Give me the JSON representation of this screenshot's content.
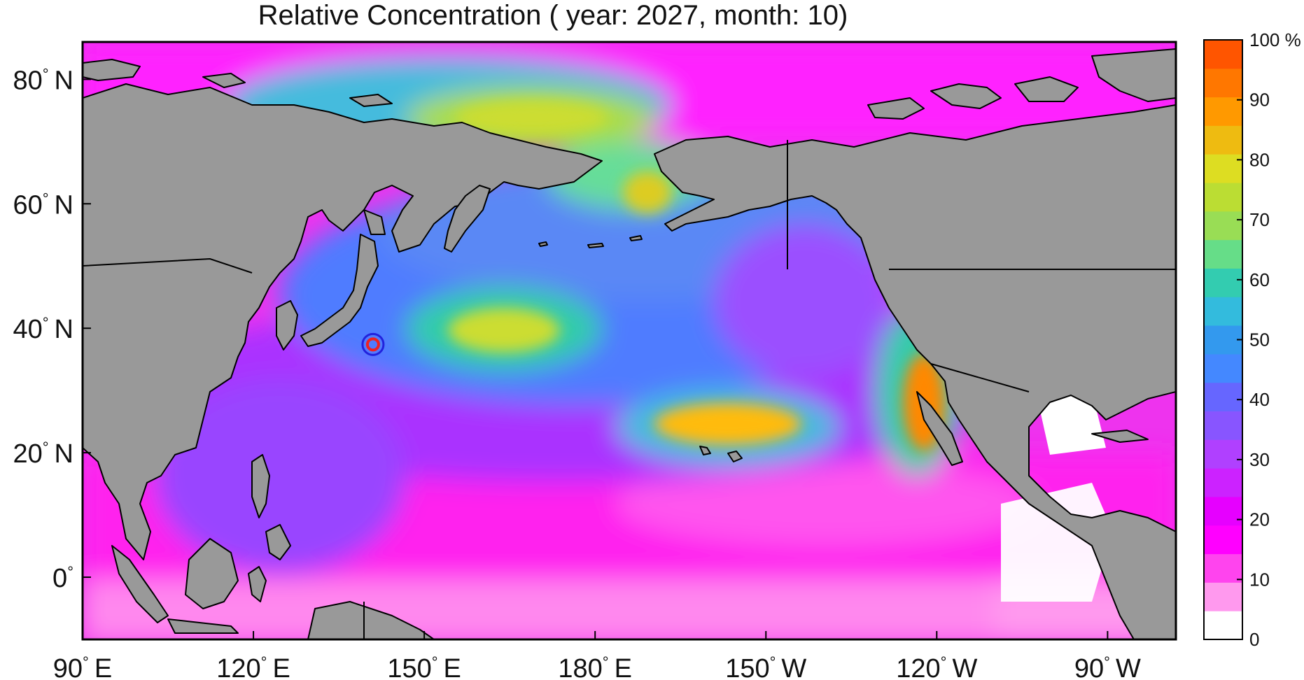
{
  "title": "Relative Concentration ( year: 2027, month: 10)",
  "lat_ticks": [
    {
      "deg": "80",
      "hemi": "N",
      "value": 80
    },
    {
      "deg": "60",
      "hemi": "N",
      "value": 60
    },
    {
      "deg": "40",
      "hemi": "N",
      "value": 40
    },
    {
      "deg": "20",
      "hemi": "N",
      "value": 20
    },
    {
      "deg": "0",
      "hemi": "",
      "value": 0
    }
  ],
  "lon_ticks": [
    {
      "deg": "90",
      "hemi": "E",
      "value": 90
    },
    {
      "deg": "120",
      "hemi": "E",
      "value": 120
    },
    {
      "deg": "150",
      "hemi": "E",
      "value": 150
    },
    {
      "deg": "180",
      "hemi": "E",
      "value": 180
    },
    {
      "deg": "150",
      "hemi": "W",
      "value": 210
    },
    {
      "deg": "120",
      "hemi": "W",
      "value": 240
    },
    {
      "deg": "90",
      "hemi": "W",
      "value": 270
    }
  ],
  "map_extent": {
    "lon": [
      90,
      282
    ],
    "lat": [
      -10,
      86
    ]
  },
  "source_marker": {
    "lon": 141.0,
    "lat": 37.4
  },
  "colorbar": {
    "ticks": [
      "0",
      "10",
      "20",
      "30",
      "40",
      "50",
      "60",
      "70",
      "80",
      "90",
      "100 %"
    ],
    "colors": [
      "#ffffff",
      "#ff99ee",
      "#ff44ee",
      "#ff00ff",
      "#e600ff",
      "#cc22ff",
      "#b040ff",
      "#8855ff",
      "#6666ff",
      "#4488ff",
      "#3399ee",
      "#33bbdd",
      "#33ccb0",
      "#66dd88",
      "#99dd55",
      "#bbdd33",
      "#dddd22",
      "#eebb11",
      "#ff9900",
      "#ff7700",
      "#ff5500"
    ]
  },
  "colors": {
    "land": "#999999",
    "coast": "#000000"
  }
}
